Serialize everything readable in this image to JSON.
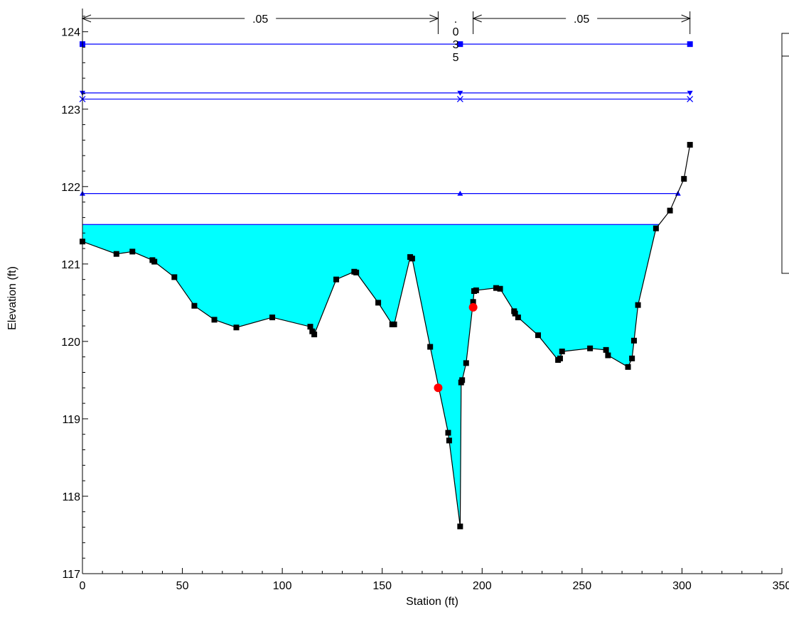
{
  "chart_data": {
    "type": "line",
    "title": "",
    "xlabel": "Station (ft)",
    "ylabel": "Elevation (ft)",
    "xlim": [
      0,
      350
    ],
    "ylim": [
      117,
      124.3
    ],
    "x_ticks": [
      0,
      50,
      100,
      150,
      200,
      250,
      300,
      350
    ],
    "y_ticks": [
      117,
      118,
      119,
      120,
      121,
      122,
      123,
      124
    ],
    "grid": false,
    "colors": {
      "water_fill": "#00ffff",
      "water_surface": "#0000ff",
      "level_line": "#0000ff",
      "ground": "#000000",
      "bank": "#ff0000"
    },
    "water_surface_elevation": 121.51,
    "manning_n": [
      {
        "x_from": 0,
        "x_to": 178,
        "label": ".05"
      },
      {
        "x_from": 178,
        "x_to": 195.5,
        "label": ".035",
        "vertical": true
      },
      {
        "x_from": 195.5,
        "x_to": 304,
        "label": ".05"
      }
    ],
    "level_lines": [
      {
        "elevation": 123.84,
        "marker": "square",
        "x": [
          0,
          189,
          304
        ]
      },
      {
        "elevation": 123.21,
        "marker": "triangle-down",
        "x": [
          0,
          189,
          304
        ]
      },
      {
        "elevation": 123.13,
        "marker": "x",
        "x": [
          0,
          189,
          304
        ]
      },
      {
        "elevation": 121.91,
        "marker": "triangle-up",
        "x": [
          0,
          189,
          298
        ]
      }
    ],
    "bank_stations": [
      {
        "x": 178,
        "y": 119.4
      },
      {
        "x": 195.5,
        "y": 120.44
      }
    ],
    "ground": {
      "x": [
        0,
        17,
        25,
        35,
        36,
        46,
        56,
        66,
        77,
        95,
        114,
        115,
        116,
        127,
        136,
        137,
        148,
        155,
        156,
        164,
        165,
        174,
        183,
        183.5,
        189,
        189.5,
        190,
        192,
        195.5,
        196,
        197,
        207,
        209,
        216,
        216.5,
        218,
        228,
        238,
        239,
        240,
        254,
        262,
        263,
        273,
        275,
        276,
        278,
        287,
        294,
        301,
        304
      ],
      "y": [
        121.29,
        121.13,
        121.16,
        121.05,
        121.03,
        120.83,
        120.46,
        120.28,
        120.18,
        120.31,
        120.19,
        120.13,
        120.09,
        120.8,
        120.9,
        120.89,
        120.5,
        120.22,
        120.22,
        121.09,
        121.07,
        119.93,
        118.82,
        118.72,
        117.61,
        119.47,
        119.5,
        119.72,
        120.51,
        120.65,
        120.66,
        120.69,
        120.68,
        120.39,
        120.36,
        120.31,
        120.08,
        119.76,
        119.78,
        119.87,
        119.91,
        119.89,
        119.82,
        119.67,
        119.78,
        120.01,
        120.47,
        121.46,
        121.69,
        122.1,
        122.54
      ]
    }
  }
}
